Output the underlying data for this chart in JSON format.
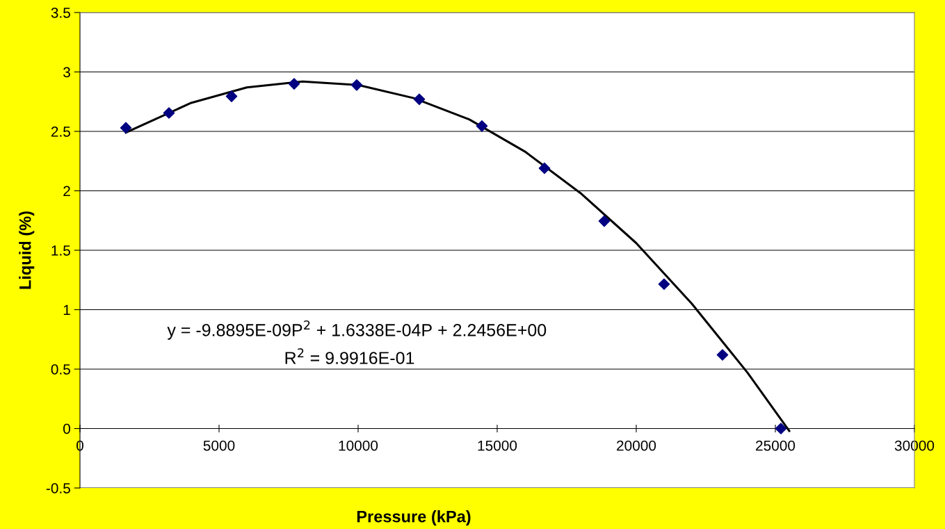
{
  "chart_data": {
    "type": "scatter",
    "xlabel": "Pressure (kPa)",
    "ylabel": "Liquid (%)",
    "x": [
      1650,
      3200,
      5450,
      7700,
      9950,
      12200,
      14450,
      16700,
      18850,
      21000,
      23100,
      25200
    ],
    "series": [
      {
        "color": "#000080",
        "marker": "diamond",
        "values": [
          2.53,
          2.655,
          2.795,
          2.9,
          2.89,
          2.77,
          2.545,
          2.19,
          1.745,
          1.215,
          0.62,
          0
        ]
      },
      {
        "type": "line",
        "color": "#000000",
        "marker": "none",
        "x": [
          1650,
          4000,
          6000,
          8000,
          10000,
          12000,
          14000,
          16000,
          18000,
          20000,
          22000,
          24000,
          25500
        ],
        "values": [
          2.49,
          2.74,
          2.87,
          2.92,
          2.89,
          2.78,
          2.6,
          2.33,
          1.98,
          1.56,
          1.05,
          0.47,
          -0.02
        ]
      }
    ],
    "xlim": [
      0,
      30000
    ],
    "xticks": [
      0,
      5000,
      10000,
      15000,
      20000,
      25000,
      30000
    ],
    "ylim": [
      -0.5,
      3.5
    ],
    "yticks": [
      -0.5,
      0,
      0.5,
      1,
      1.5,
      2,
      2.5,
      3,
      3.5
    ],
    "grid": "y",
    "legend": false,
    "annotations": [
      "y = -9.8895E-09P$^{2}$ + 1.6338E-04P + 2.2456E+00",
      "R$^{2}$ = 9.9916E-01"
    ]
  }
}
